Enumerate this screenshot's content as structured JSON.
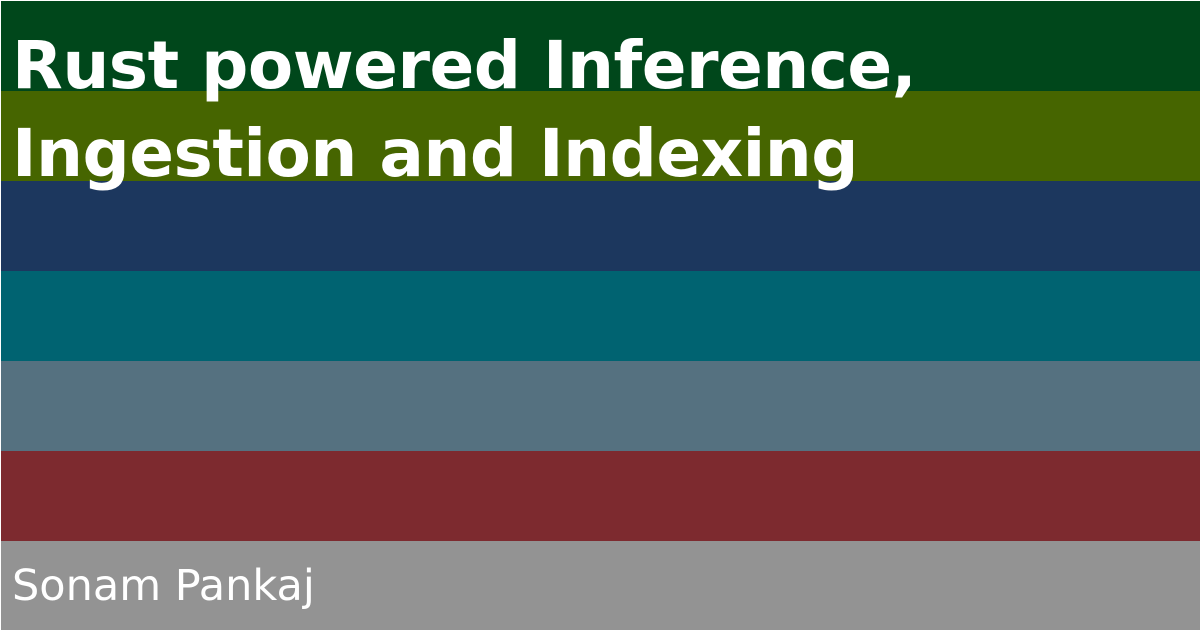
{
  "title_lines": [
    "Rust powered Inference,",
    "Ingestion and Indexing"
  ],
  "author": "Sonam Pankaj",
  "stripe_colors": [
    "#00471b",
    "#466500",
    "#1c375e",
    "#006371",
    "#557180",
    "#7d2a2f",
    "#939393"
  ],
  "text_color": "#ffffff"
}
